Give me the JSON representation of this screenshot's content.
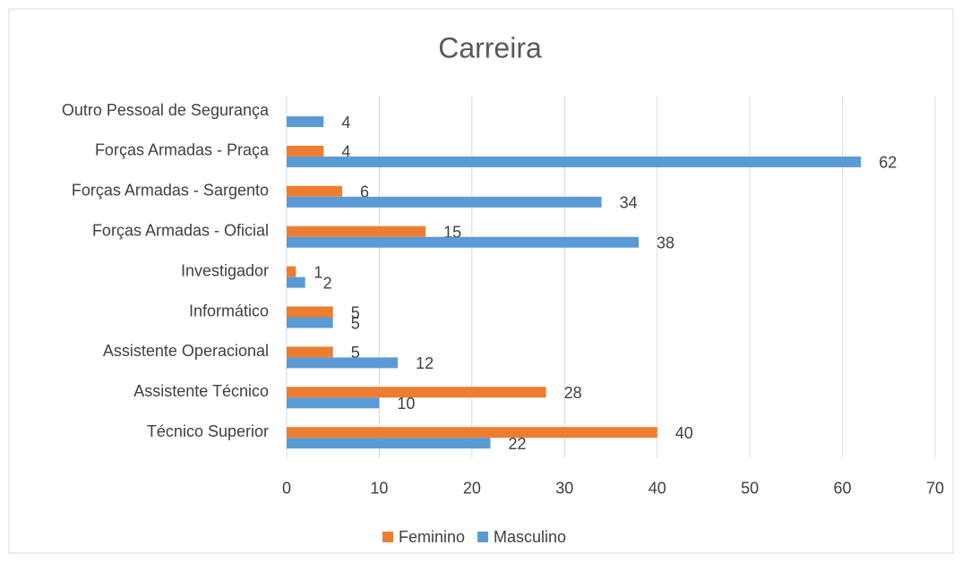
{
  "chart_data": {
    "type": "barh",
    "title": "Carreira",
    "categories": [
      "Outro Pessoal de Segurança",
      "Forças Armadas - Praça",
      "Forças Armadas - Sargento",
      "Forças Armadas - Oficial",
      "Investigador",
      "Informático",
      "Assistente Operacional",
      "Assistente Técnico",
      "Técnico Superior"
    ],
    "series": [
      {
        "name": "Feminino",
        "color": "#ed7d31",
        "values": [
          null,
          4,
          6,
          15,
          1,
          5,
          5,
          28,
          40
        ]
      },
      {
        "name": "Masculino",
        "color": "#5b9bd5",
        "values": [
          4,
          62,
          34,
          38,
          2,
          5,
          12,
          10,
          22
        ]
      }
    ],
    "xlim": [
      0,
      70
    ],
    "xticks": [
      0,
      10,
      20,
      30,
      40,
      50,
      60,
      70
    ],
    "grid": true,
    "legend": "bottom"
  }
}
